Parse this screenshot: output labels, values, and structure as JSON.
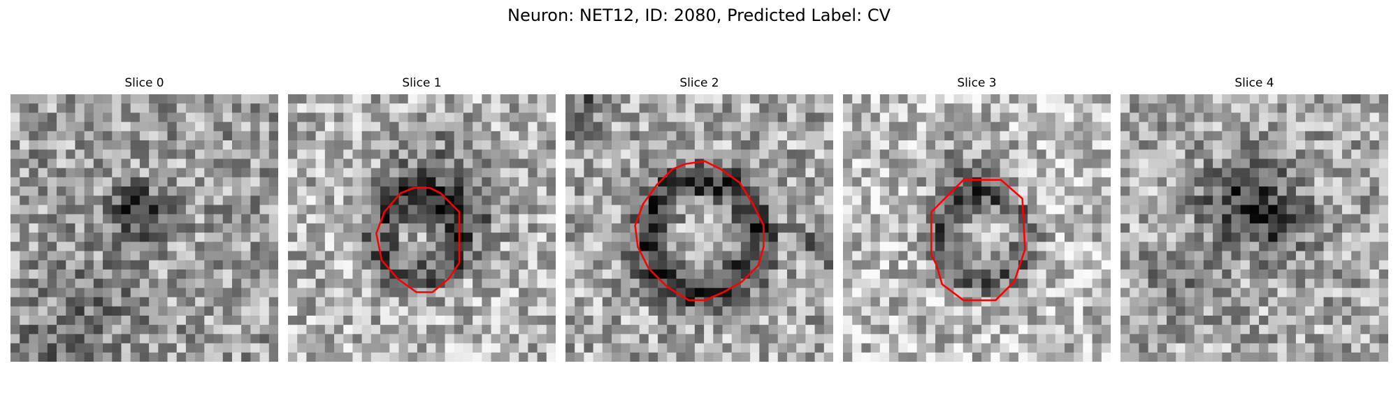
{
  "figure": {
    "title": "Neuron: NET12, ID: 2080, Predicted Label: CV",
    "contour_color": "#ff0000",
    "colormap": "gray",
    "grid_size": 29
  },
  "slices": [
    {
      "title": "Slice 0",
      "contour": false
    },
    {
      "title": "Slice 1",
      "contour": true
    },
    {
      "title": "Slice 2",
      "contour": true
    },
    {
      "title": "Slice 3",
      "contour": true
    },
    {
      "title": "Slice 4",
      "contour": false
    }
  ]
}
